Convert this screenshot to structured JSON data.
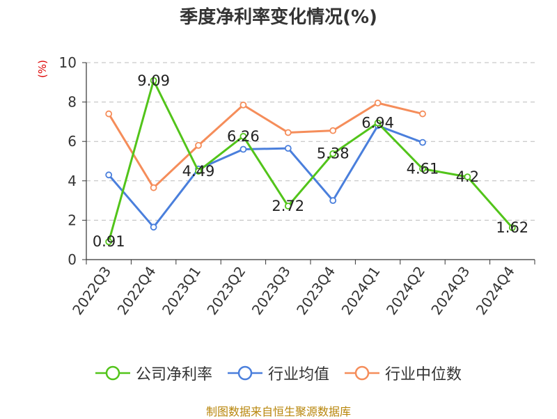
{
  "chart_data": {
    "type": "line",
    "title": "季度净利率变化情况(%)",
    "ylabel": "(%)",
    "xlabel": "",
    "ylim": [
      0,
      10
    ],
    "yticks": [
      0,
      2,
      4,
      6,
      8,
      10
    ],
    "grid": true,
    "legend_position": "bottom",
    "categories": [
      "2022Q3",
      "2022Q4",
      "2023Q1",
      "2023Q2",
      "2023Q3",
      "2023Q4",
      "2024Q1",
      "2024Q2",
      "2024Q3",
      "2024Q4"
    ],
    "series": [
      {
        "name": "公司净利率",
        "color": "#52c41a",
        "values": [
          0.91,
          9.09,
          4.49,
          6.26,
          2.72,
          5.38,
          6.94,
          4.61,
          4.2,
          1.62
        ],
        "labels_shown": true
      },
      {
        "name": "行业均值",
        "color": "#4a7fdc",
        "values": [
          4.3,
          1.65,
          4.6,
          5.6,
          5.65,
          3.0,
          6.8,
          5.95,
          null,
          null
        ],
        "labels_shown": false
      },
      {
        "name": "行业中位数",
        "color": "#f58d5a",
        "values": [
          7.4,
          3.65,
          5.8,
          7.85,
          6.45,
          6.55,
          7.95,
          7.4,
          null,
          null
        ],
        "labels_shown": false
      }
    ]
  },
  "source_text": "制图数据来自恒生聚源数据库"
}
